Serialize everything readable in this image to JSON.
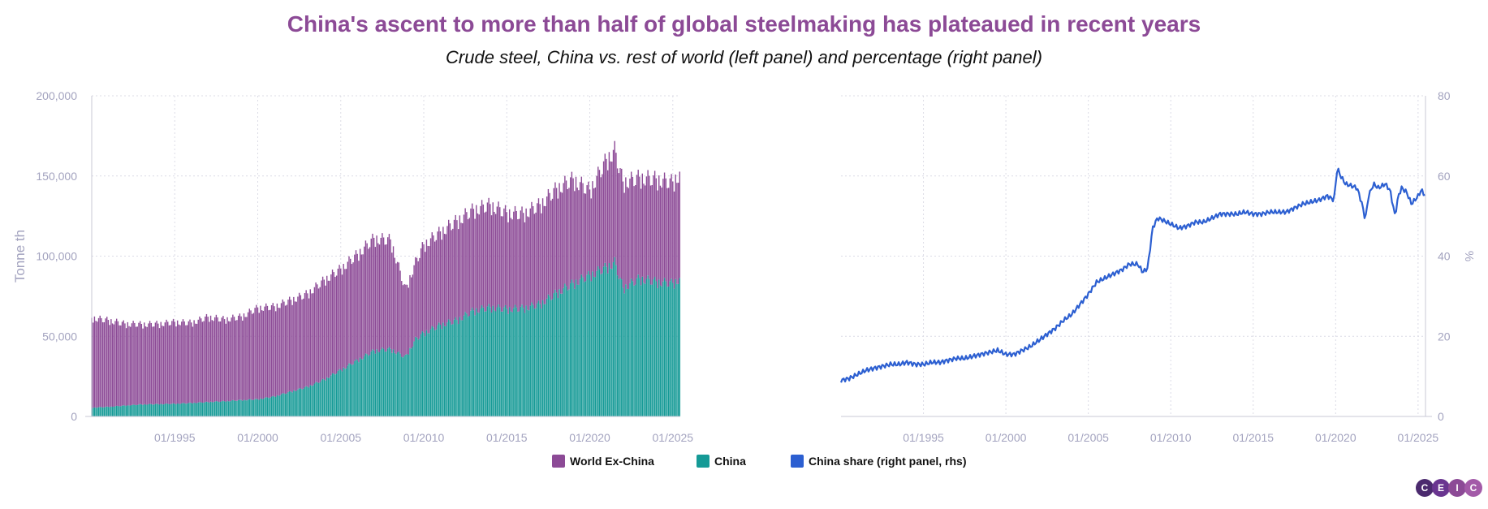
{
  "title": "China's ascent to more than half of global steelmaking has plateaued in recent years",
  "subtitle": "Crude steel, China vs. rest of world (left panel) and percentage (right panel)",
  "colors": {
    "title": "#8c4a96",
    "world_ex_china": "#8c4a96",
    "china": "#159a96",
    "china_share": "#2c5fd1",
    "axis_text": "#a3a3bf",
    "grid": "#dcdce6"
  },
  "legend": [
    {
      "label": "World Ex-China",
      "color": "#8c4a96"
    },
    {
      "label": "China",
      "color": "#159a96"
    },
    {
      "label": "China share (right panel, rhs)",
      "color": "#2c5fd1"
    }
  ],
  "logo": {
    "letters": [
      "C",
      "E",
      "I",
      "C"
    ]
  },
  "chart_data": [
    {
      "type": "bar",
      "stacked": true,
      "title": "",
      "ylabel": "Tonne th",
      "ylim": [
        0,
        200000
      ],
      "yticks": [
        "0",
        "50,000",
        "100,000",
        "150,000",
        "200,000"
      ],
      "xrange_years": [
        1990.0,
        2025.45
      ],
      "xticks": [
        {
          "year": 1995,
          "label": "01/1995"
        },
        {
          "year": 2000,
          "label": "01/2000"
        },
        {
          "year": 2005,
          "label": "01/2005"
        },
        {
          "year": 2010,
          "label": "01/2010"
        },
        {
          "year": 2015,
          "label": "01/2015"
        },
        {
          "year": 2020,
          "label": "01/2020"
        },
        {
          "year": 2025,
          "label": "01/2025"
        }
      ],
      "series": [
        {
          "name": "China",
          "frequency": "monthly, Jan 1990 - Jun 2025, interpolated between anchors",
          "anchors": [
            [
              1990.0,
              5500
            ],
            [
              1991.0,
              6000
            ],
            [
              1992.0,
              6800
            ],
            [
              1993.0,
              7500
            ],
            [
              1994.0,
              7700
            ],
            [
              1995.0,
              7900
            ],
            [
              1996.0,
              8400
            ],
            [
              1997.0,
              9000
            ],
            [
              1998.0,
              9500
            ],
            [
              1999.0,
              10200
            ],
            [
              2000.0,
              10700
            ],
            [
              2001.0,
              12500
            ],
            [
              2002.0,
              15500
            ],
            [
              2003.0,
              18500
            ],
            [
              2004.0,
              23000
            ],
            [
              2005.0,
              29000
            ],
            [
              2006.0,
              35000
            ],
            [
              2007.0,
              41000
            ],
            [
              2008.0,
              42000
            ],
            [
              2008.9,
              37000
            ],
            [
              2009.5,
              48000
            ],
            [
              2010.0,
              52000
            ],
            [
              2011.0,
              57000
            ],
            [
              2012.0,
              60000
            ],
            [
              2013.0,
              66000
            ],
            [
              2014.0,
              68000
            ],
            [
              2015.0,
              67000
            ],
            [
              2016.0,
              67500
            ],
            [
              2017.0,
              70000
            ],
            [
              2018.0,
              77000
            ],
            [
              2019.0,
              83000
            ],
            [
              2020.0,
              88000
            ],
            [
              2021.0,
              93000
            ],
            [
              2021.5,
              96000
            ],
            [
              2022.0,
              80000
            ],
            [
              2023.0,
              86000
            ],
            [
              2024.0,
              84000
            ],
            [
              2025.0,
              83000
            ],
            [
              2025.45,
              86000
            ]
          ]
        },
        {
          "name": "World Ex-China",
          "frequency": "monthly, Jan 1990 - Jun 2025, interpolated between anchors",
          "anchors": [
            [
              1990.0,
              56000
            ],
            [
              1991.0,
              54000
            ],
            [
              1992.0,
              51000
            ],
            [
              1993.0,
              50000
            ],
            [
              1994.0,
              50000
            ],
            [
              1995.0,
              51000
            ],
            [
              1996.0,
              50000
            ],
            [
              1997.0,
              53000
            ],
            [
              1998.0,
              51000
            ],
            [
              1999.0,
              52000
            ],
            [
              2000.0,
              57000
            ],
            [
              2001.0,
              56000
            ],
            [
              2002.0,
              57000
            ],
            [
              2003.0,
              58000
            ],
            [
              2004.0,
              62000
            ],
            [
              2005.0,
              63000
            ],
            [
              2006.0,
              66000
            ],
            [
              2007.0,
              70000
            ],
            [
              2008.0,
              68000
            ],
            [
              2008.9,
              42000
            ],
            [
              2009.5,
              48000
            ],
            [
              2010.0,
              55000
            ],
            [
              2011.0,
              58000
            ],
            [
              2012.0,
              62000
            ],
            [
              2013.0,
              63000
            ],
            [
              2014.0,
              64000
            ],
            [
              2015.0,
              60000
            ],
            [
              2016.0,
              59000
            ],
            [
              2017.0,
              62000
            ],
            [
              2018.0,
              65000
            ],
            [
              2019.0,
              65000
            ],
            [
              2020.0,
              53000
            ],
            [
              2021.0,
              67000
            ],
            [
              2021.5,
              70000
            ],
            [
              2022.0,
              66000
            ],
            [
              2023.0,
              63000
            ],
            [
              2024.0,
              64000
            ],
            [
              2025.0,
              63000
            ],
            [
              2025.45,
              66000
            ]
          ]
        }
      ]
    },
    {
      "type": "line",
      "title": "",
      "ylabel": "%",
      "ylim": [
        0,
        80
      ],
      "yticks": [
        "0",
        "20",
        "40",
        "60",
        "80"
      ],
      "yaxis_side": "right",
      "xrange_years": [
        1990.0,
        2025.45
      ],
      "xticks": [
        {
          "year": 1995,
          "label": "01/1995"
        },
        {
          "year": 2000,
          "label": "01/2000"
        },
        {
          "year": 2005,
          "label": "01/2005"
        },
        {
          "year": 2010,
          "label": "01/2010"
        },
        {
          "year": 2015,
          "label": "01/2015"
        },
        {
          "year": 2020,
          "label": "01/2020"
        },
        {
          "year": 2025,
          "label": "01/2025"
        }
      ],
      "series": [
        {
          "name": "China share (right panel, rhs)",
          "points": [
            [
              1990.0,
              9
            ],
            [
              1990.5,
              9.5
            ],
            [
              1991.0,
              10.5
            ],
            [
              1991.5,
              11.5
            ],
            [
              1992.0,
              12
            ],
            [
              1992.5,
              12.5
            ],
            [
              1993.0,
              13
            ],
            [
              1993.5,
              13
            ],
            [
              1994.0,
              13.5
            ],
            [
              1994.5,
              13
            ],
            [
              1995.0,
              13
            ],
            [
              1995.5,
              13.5
            ],
            [
              1996.0,
              13.5
            ],
            [
              1996.5,
              14
            ],
            [
              1997.0,
              14.5
            ],
            [
              1997.5,
              14.5
            ],
            [
              1998.0,
              15
            ],
            [
              1998.5,
              15.5
            ],
            [
              1999.0,
              16
            ],
            [
              1999.5,
              16.5
            ],
            [
              2000.0,
              15.5
            ],
            [
              2000.5,
              15.5
            ],
            [
              2001.0,
              16.5
            ],
            [
              2001.5,
              17.5
            ],
            [
              2002.0,
              19
            ],
            [
              2002.5,
              20.5
            ],
            [
              2003.0,
              22
            ],
            [
              2003.5,
              24
            ],
            [
              2004.0,
              25.5
            ],
            [
              2004.5,
              28
            ],
            [
              2005.0,
              30.5
            ],
            [
              2005.5,
              33.5
            ],
            [
              2006.0,
              34.5
            ],
            [
              2006.5,
              35.5
            ],
            [
              2007.0,
              36.5
            ],
            [
              2007.5,
              38
            ],
            [
              2008.0,
              38
            ],
            [
              2008.3,
              36
            ],
            [
              2008.6,
              37
            ],
            [
              2008.9,
              47
            ],
            [
              2009.2,
              49.5
            ],
            [
              2009.5,
              49
            ],
            [
              2010.0,
              48
            ],
            [
              2010.5,
              47
            ],
            [
              2011.0,
              47.5
            ],
            [
              2011.5,
              48.5
            ],
            [
              2012.0,
              48.5
            ],
            [
              2012.5,
              49.5
            ],
            [
              2013.0,
              50.5
            ],
            [
              2013.5,
              50.5
            ],
            [
              2014.0,
              50.5
            ],
            [
              2014.5,
              51
            ],
            [
              2015.0,
              50.5
            ],
            [
              2015.5,
              50.5
            ],
            [
              2016.0,
              51
            ],
            [
              2016.5,
              51
            ],
            [
              2017.0,
              51
            ],
            [
              2017.5,
              52
            ],
            [
              2018.0,
              53
            ],
            [
              2018.5,
              53.5
            ],
            [
              2019.0,
              54
            ],
            [
              2019.5,
              55
            ],
            [
              2019.9,
              54
            ],
            [
              2020.1,
              62
            ],
            [
              2020.3,
              60
            ],
            [
              2020.6,
              58
            ],
            [
              2021.0,
              57.5
            ],
            [
              2021.3,
              57
            ],
            [
              2021.6,
              53
            ],
            [
              2021.8,
              49
            ],
            [
              2022.0,
              55
            ],
            [
              2022.3,
              58
            ],
            [
              2022.6,
              57
            ],
            [
              2023.0,
              58
            ],
            [
              2023.3,
              56.5
            ],
            [
              2023.6,
              50
            ],
            [
              2023.8,
              55
            ],
            [
              2024.0,
              57
            ],
            [
              2024.3,
              56
            ],
            [
              2024.6,
              53
            ],
            [
              2025.0,
              55
            ],
            [
              2025.2,
              56.5
            ],
            [
              2025.45,
              55
            ]
          ]
        }
      ]
    }
  ]
}
